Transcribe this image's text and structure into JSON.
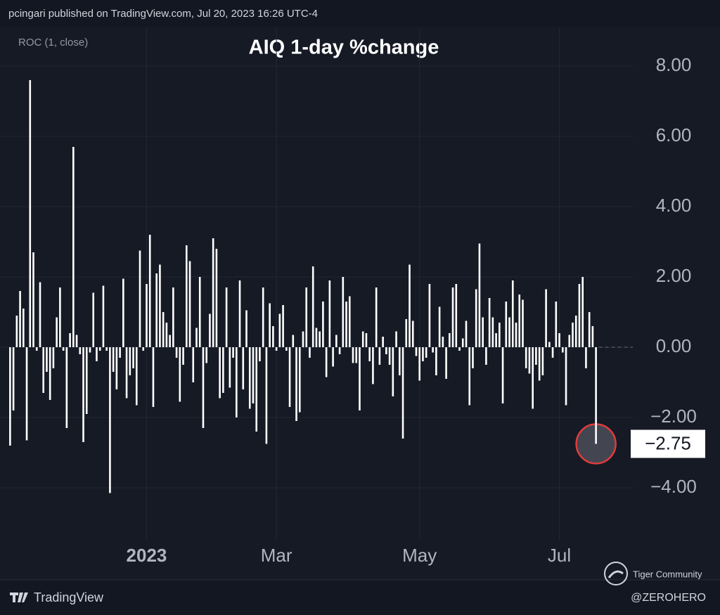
{
  "chart_data": {
    "type": "bar",
    "header": "pcingari published on TradingView.com, Jul 20, 2023 16:26 UTC-4",
    "indicator": "ROC (1, close)",
    "title": "AIQ 1-day %change",
    "brand": "TradingView",
    "watermark": "Tiger Community",
    "credit": "@ZEROHERO",
    "color": "#ffffff",
    "highlight_color": "#e03c3c",
    "grid": true,
    "ylim": [
      -5.5,
      9.1
    ],
    "yticks": [
      {
        "value": -4,
        "label": "−4.00"
      },
      {
        "value": -2,
        "label": "−2.00"
      },
      {
        "value": 0,
        "label": "0.00"
      },
      {
        "value": 2,
        "label": "2.00"
      },
      {
        "value": 4,
        "label": "4.00"
      },
      {
        "value": 6,
        "label": "6.00"
      },
      {
        "value": 8,
        "label": "8.00"
      }
    ],
    "categories": [
      null,
      null,
      null,
      null,
      null,
      null,
      null,
      null,
      null,
      null,
      null,
      null,
      null,
      null,
      null,
      null,
      null,
      null,
      null,
      null,
      null,
      null,
      null,
      null,
      null,
      null,
      null,
      null,
      null,
      null,
      null,
      null,
      null,
      null,
      null,
      null,
      null,
      null,
      null,
      null,
      null,
      "2023",
      null,
      null,
      null,
      null,
      null,
      null,
      null,
      null,
      null,
      null,
      null,
      null,
      null,
      null,
      null,
      null,
      null,
      null,
      null,
      null,
      null,
      null,
      null,
      null,
      null,
      null,
      null,
      null,
      null,
      null,
      null,
      null,
      null,
      null,
      null,
      null,
      null,
      null,
      "Mar",
      null,
      null,
      null,
      null,
      null,
      null,
      null,
      null,
      null,
      null,
      null,
      null,
      null,
      null,
      null,
      null,
      null,
      null,
      null,
      null,
      null,
      null,
      null,
      null,
      null,
      null,
      null,
      null,
      null,
      null,
      null,
      null,
      null,
      null,
      null,
      null,
      null,
      null,
      null,
      null,
      null,
      null,
      "May",
      null,
      null,
      null,
      null,
      null,
      null,
      null,
      null,
      null,
      null,
      null,
      null,
      null,
      null,
      null,
      null,
      null,
      null,
      null,
      null,
      null,
      null,
      null,
      null,
      null,
      null,
      null,
      null,
      null,
      null,
      null,
      null,
      null,
      null,
      null,
      null,
      null,
      null,
      null,
      null,
      null,
      "Jul",
      null,
      null,
      null,
      null,
      null,
      null,
      null,
      null,
      null,
      null,
      null
    ],
    "values": [
      -2.8,
      -1.8,
      0.9,
      1.6,
      1.1,
      -2.65,
      7.6,
      2.7,
      -0.1,
      1.85,
      -1.3,
      -0.7,
      -1.5,
      -0.6,
      0.85,
      1.7,
      -0.1,
      -2.3,
      0.4,
      5.7,
      0.35,
      -0.2,
      -2.7,
      -1.9,
      -0.15,
      1.55,
      -0.4,
      -0.1,
      1.75,
      -0.1,
      -4.15,
      -0.7,
      -1.2,
      -0.3,
      1.95,
      -1.45,
      -0.8,
      -0.6,
      -1.65,
      2.75,
      -0.1,
      1.8,
      3.2,
      -1.7,
      2.1,
      2.35,
      1.0,
      0.7,
      0.35,
      1.7,
      -0.3,
      -1.55,
      -0.5,
      2.9,
      2.45,
      -1.0,
      0.55,
      2.0,
      -2.3,
      -0.45,
      0.95,
      3.1,
      2.8,
      -1.45,
      -1.3,
      1.7,
      -1.15,
      -0.3,
      -2.0,
      1.9,
      -1.2,
      1.05,
      -1.75,
      -1.6,
      -2.4,
      -0.4,
      1.7,
      -2.75,
      1.25,
      0.6,
      -0.1,
      0.95,
      1.2,
      -0.1,
      -1.7,
      0.35,
      -2.1,
      -1.85,
      0.45,
      1.7,
      -0.3,
      2.3,
      0.55,
      0.45,
      1.3,
      -0.85,
      1.9,
      -0.55,
      0.35,
      -0.2,
      2.0,
      1.3,
      1.45,
      -0.45,
      -0.45,
      -1.8,
      0.45,
      0.4,
      -0.4,
      -1.05,
      1.7,
      -0.5,
      0.3,
      -0.2,
      -0.5,
      -1.4,
      0.45,
      -0.8,
      -2.6,
      0.8,
      2.35,
      0.75,
      -0.25,
      -0.95,
      -0.4,
      -0.3,
      1.8,
      -0.15,
      -0.8,
      1.15,
      0.3,
      -0.9,
      0.4,
      1.7,
      1.8,
      -0.1,
      0.25,
      0.75,
      -1.65,
      -0.6,
      1.65,
      2.95,
      0.85,
      -0.5,
      1.4,
      0.85,
      0.4,
      0.7,
      -1.6,
      1.3,
      0.85,
      1.9,
      0.7,
      1.5,
      1.35,
      -0.6,
      -0.75,
      -1.75,
      -0.5,
      -0.95,
      -0.8,
      1.65,
      0.15,
      -0.3,
      1.3,
      0.4,
      -0.15,
      -1.65,
      0.35,
      0.7,
      0.9,
      1.8,
      2.0,
      -0.6,
      1.0,
      0.6,
      -2.75
    ],
    "value_labels": [
      null,
      null,
      null,
      null,
      null,
      null,
      null,
      null,
      null,
      null,
      null,
      null,
      null,
      null,
      null,
      null,
      null,
      null,
      null,
      null,
      null,
      null,
      null,
      null,
      null,
      null,
      null,
      null,
      null,
      null,
      null,
      null,
      null,
      null,
      null,
      null,
      null,
      null,
      null,
      null,
      null,
      null,
      null,
      null,
      null,
      null,
      null,
      null,
      null,
      null,
      null,
      null,
      null,
      null,
      null,
      null,
      null,
      null,
      null,
      null,
      null,
      null,
      null,
      null,
      null,
      null,
      null,
      null,
      null,
      null,
      null,
      null,
      null,
      null,
      null,
      null,
      null,
      null,
      null,
      null,
      null,
      null,
      null,
      null,
      null,
      null,
      null,
      null,
      null,
      null,
      null,
      null,
      null,
      null,
      null,
      null,
      null,
      null,
      null,
      null,
      null,
      null,
      null,
      null,
      null,
      null,
      null,
      null,
      null,
      null,
      null,
      null,
      null,
      null,
      null,
      null,
      null,
      null,
      null,
      null,
      null,
      null,
      null,
      null,
      null,
      null,
      null,
      null,
      null,
      null,
      null,
      null,
      null,
      null,
      null,
      null,
      null,
      null,
      null,
      null,
      null,
      null,
      null,
      null,
      null,
      null,
      null,
      null,
      null,
      null,
      null,
      null,
      null,
      null,
      null,
      null,
      null,
      null,
      null,
      null,
      null,
      null,
      null,
      null,
      null,
      null,
      null,
      null,
      null,
      null,
      null,
      null,
      null,
      null,
      null,
      null,
      "−2.75"
    ]
  }
}
